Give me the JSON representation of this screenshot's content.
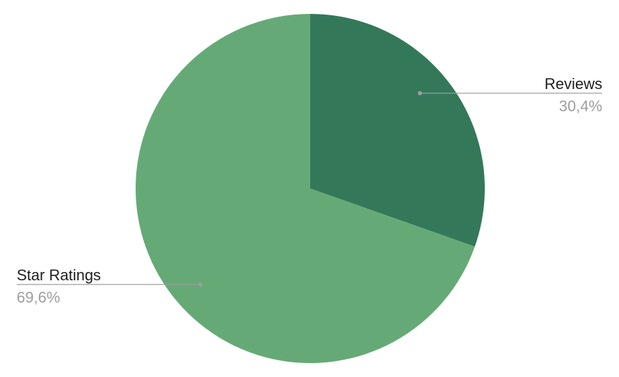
{
  "chart_data": {
    "type": "pie",
    "title": "",
    "start_angle_deg": 0,
    "direction": "clockwise",
    "slices": [
      {
        "label": "Reviews",
        "value": 30.4,
        "display": "30,4%",
        "color": "#34785a"
      },
      {
        "label": "Star Ratings",
        "value": 69.6,
        "display": "69,6%",
        "color": "#65aa76"
      }
    ],
    "legend": "none",
    "label_style": "callout",
    "label_line_color": "#9e9e9e"
  }
}
